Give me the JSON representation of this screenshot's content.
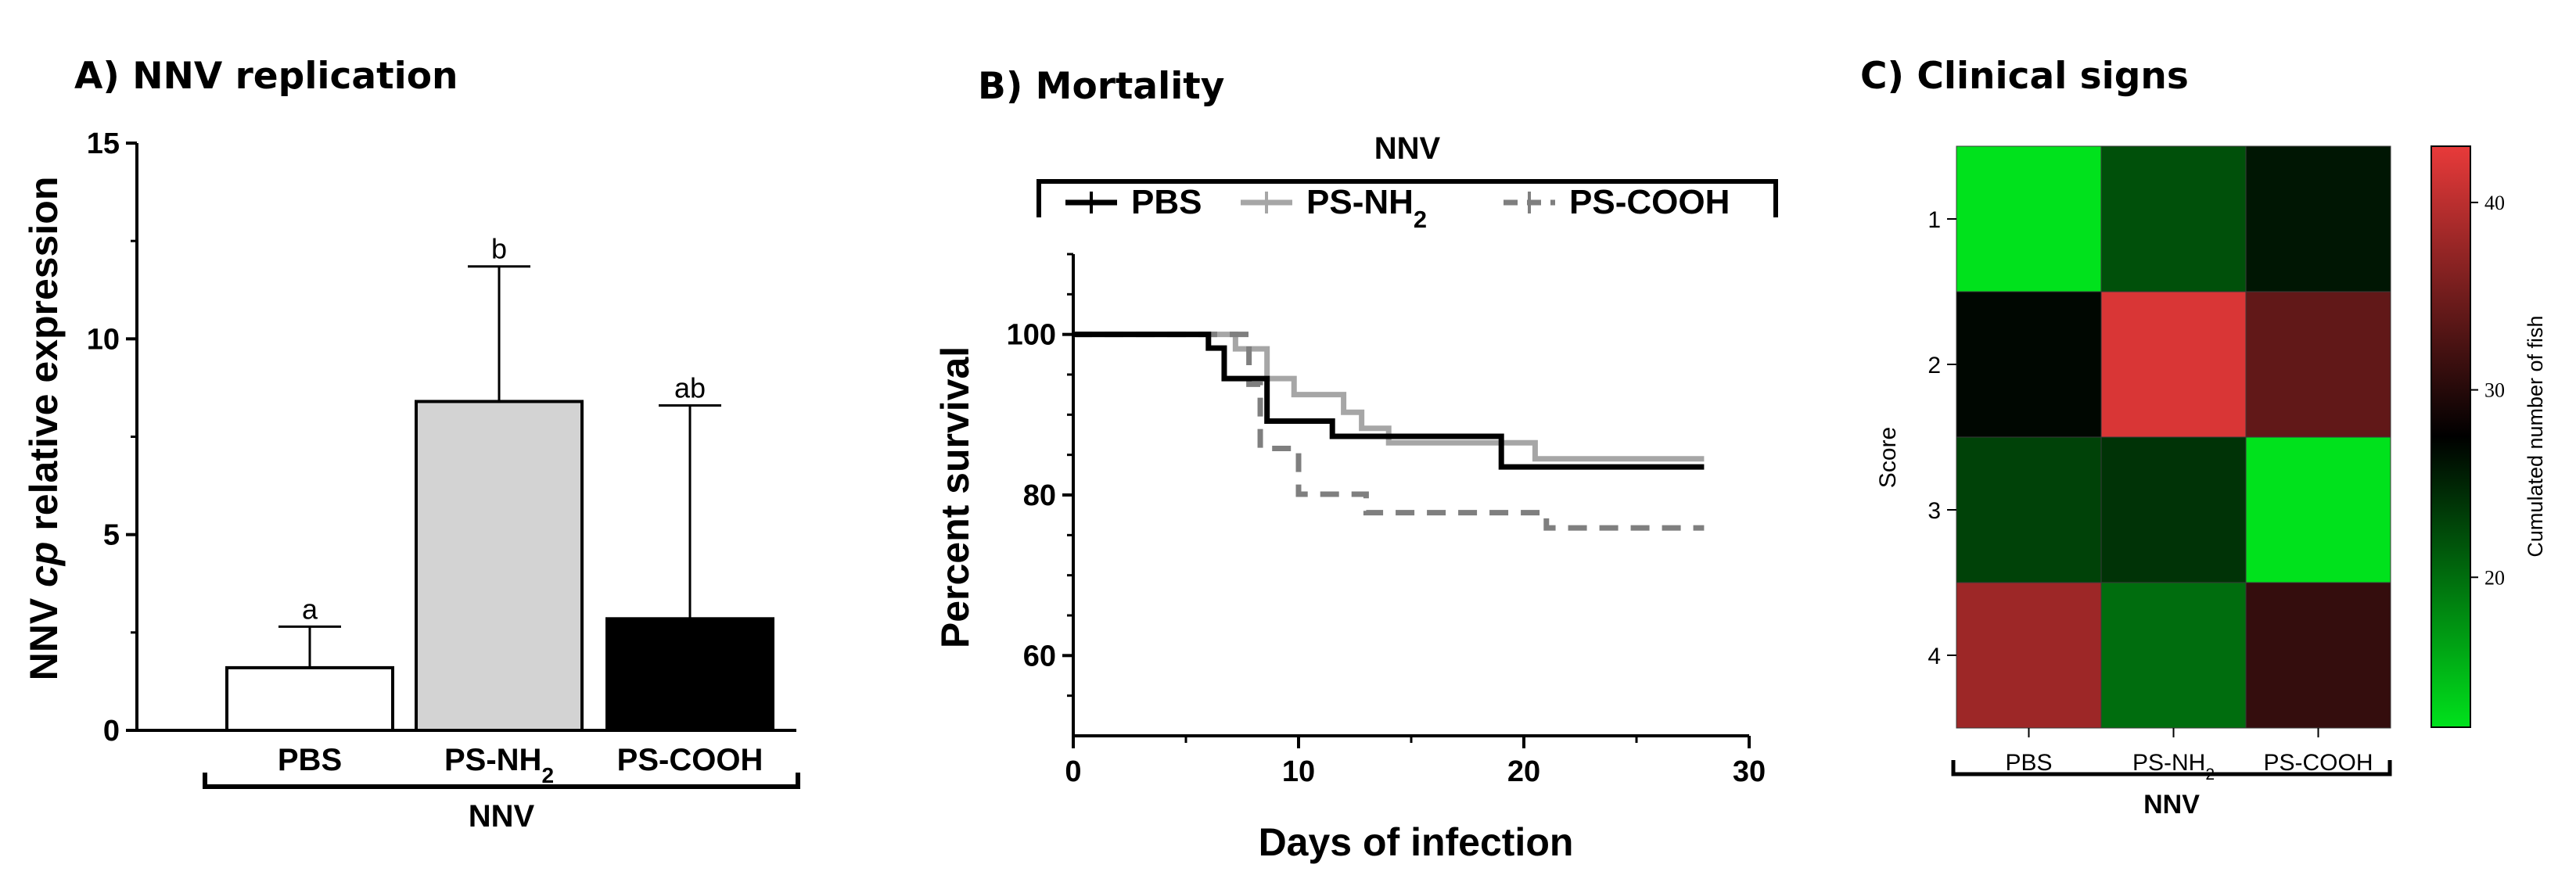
{
  "chart_data": [
    {
      "panel": "A",
      "type": "bar",
      "title": "A) NNV replication",
      "ylabel_parts": [
        "NNV ",
        "cp",
        " relative expression"
      ],
      "ylim": [
        0,
        15
      ],
      "yticks": [
        0,
        5,
        10,
        15
      ],
      "categories": [
        {
          "main": "PBS",
          "sub": ""
        },
        {
          "main": "PS-NH",
          "sub": "2"
        },
        {
          "main": "PS-COOH",
          "sub": ""
        }
      ],
      "values": [
        1.6,
        8.4,
        2.85
      ],
      "errors": [
        1.05,
        3.45,
        5.45
      ],
      "significance": [
        "a",
        "b",
        "ab"
      ],
      "fills": [
        "#ffffff",
        "#d3d3d3",
        "#000000"
      ],
      "group_label": "NNV"
    },
    {
      "panel": "B",
      "type": "line",
      "title": "B) Mortality",
      "xlabel": "Days of infection",
      "ylabel": "Percent survival",
      "xlim": [
        0,
        30
      ],
      "ylim": [
        50,
        110
      ],
      "xticks": [
        0,
        10,
        20,
        30
      ],
      "yticks": [
        60,
        80,
        100
      ],
      "group_label": "NNV",
      "series": [
        {
          "name": "PBS",
          "sub": "",
          "color": "#000000",
          "dash": "",
          "steps": [
            [
              0,
              100
            ],
            [
              6,
              98.3
            ],
            [
              6.7,
              94.5
            ],
            [
              8.6,
              89.2
            ],
            [
              11.5,
              87.3
            ],
            [
              19,
              83.5
            ],
            [
              28,
              83.5
            ]
          ]
        },
        {
          "name": "PS-NH",
          "sub": "2",
          "color": "#a6a6a6",
          "dash": "",
          "steps": [
            [
              0,
              100
            ],
            [
              7.2,
              98.2
            ],
            [
              8.6,
              94.5
            ],
            [
              9.8,
              92.5
            ],
            [
              12,
              90.3
            ],
            [
              12.8,
              88.3
            ],
            [
              14,
              86.5
            ],
            [
              20.5,
              84.5
            ],
            [
              28,
              84.5
            ]
          ]
        },
        {
          "name": "PS-COOH",
          "sub": "",
          "color": "#7f7f7f",
          "dash": "24 16",
          "steps": [
            [
              0,
              100
            ],
            [
              7.8,
              93.8
            ],
            [
              8.3,
              85.8
            ],
            [
              10,
              80.1
            ],
            [
              13,
              77.8
            ],
            [
              21,
              75.9
            ],
            [
              28,
              75.9
            ]
          ]
        }
      ]
    },
    {
      "panel": "C",
      "type": "heatmap",
      "title": "C) Clinical signs",
      "ylabel": "Score",
      "rows": [
        "1",
        "2",
        "3",
        "4"
      ],
      "columns": [
        {
          "main": "PBS",
          "sub": ""
        },
        {
          "main": "PS-NH",
          "sub": "2"
        },
        {
          "main": "PS-COOH",
          "sub": ""
        }
      ],
      "values": [
        [
          12,
          22,
          26
        ],
        [
          27,
          42,
          34
        ],
        [
          23,
          24,
          12
        ],
        [
          38,
          20,
          31
        ]
      ],
      "colorbar": {
        "label": "Cumulated number of fish",
        "min": 12,
        "max": 43,
        "ticks": [
          20,
          30,
          40
        ],
        "low_color": "#00e21c",
        "mid_color": "#000000",
        "high_color": "#e83a3a"
      },
      "group_label": "NNV"
    }
  ]
}
